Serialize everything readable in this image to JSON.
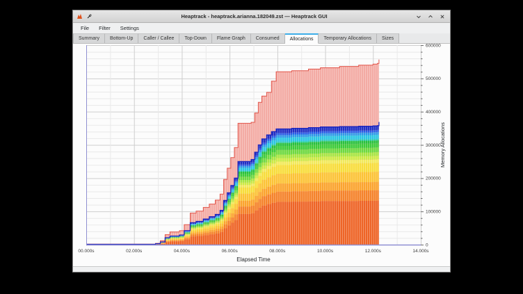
{
  "window": {
    "title": "Heaptrack - heaptrack.arianna.182049.zst — Heaptrack GUI",
    "icons": [
      "heaptrack-app-icon",
      "pin-icon"
    ],
    "controls": [
      "minimize",
      "maximize",
      "close"
    ]
  },
  "menubar": {
    "items": [
      "File",
      "Filter",
      "Settings"
    ]
  },
  "tabs": {
    "items": [
      "Summary",
      "Bottom-Up",
      "Caller / Callee",
      "Top-Down",
      "Flame Graph",
      "Consumed",
      "Allocations",
      "Temporary Allocations",
      "Sizes"
    ],
    "active": "Allocations"
  },
  "chart_data": {
    "type": "area",
    "title": "",
    "xlabel": "Elapsed Time",
    "ylabel": "Memory Allocations",
    "xlim": [
      0,
      14
    ],
    "ylim": [
      0,
      600000
    ],
    "x_tick_values": [
      0,
      2,
      4,
      6,
      8,
      10,
      12,
      14
    ],
    "x_tick_labels": [
      "00.000s",
      "02.000s",
      "04.000s",
      "06.000s",
      "08.000s",
      "10.000s",
      "12.000s",
      "14.000s"
    ],
    "y_tick_values": [
      0,
      100000,
      200000,
      300000,
      400000,
      500000,
      600000
    ],
    "y_tick_labels": [
      "0",
      "100000",
      "200000",
      "300000",
      "400000",
      "500000",
      "600000"
    ],
    "x_minor_step": 1,
    "y_minor_step": 20000,
    "grid": true,
    "legend": "none",
    "colors": {
      "axis_line": "#8f8fd2",
      "grid_major": "#cecece",
      "grid_minor": "#e9e9e9",
      "tick_text": "#3a3a3a",
      "total_fill": "#f3aba4",
      "total_line": "#e25449",
      "stack_top_line": "#1b24bd"
    },
    "points_format": [
      "time_s",
      "total_allocations",
      "stacked_top_allocations"
    ],
    "points": [
      [
        0.0,
        1500,
        1000
      ],
      [
        2.9,
        4000,
        3000
      ],
      [
        3.1,
        12000,
        8000
      ],
      [
        3.3,
        30000,
        21000
      ],
      [
        3.5,
        38000,
        26000
      ],
      [
        3.9,
        42000,
        29000
      ],
      [
        4.1,
        60000,
        42000
      ],
      [
        4.35,
        95000,
        66000
      ],
      [
        4.6,
        101000,
        70000
      ],
      [
        4.9,
        112000,
        77000
      ],
      [
        5.15,
        122000,
        84000
      ],
      [
        5.4,
        134000,
        91000
      ],
      [
        5.6,
        152000,
        103000
      ],
      [
        5.75,
        196000,
        133000
      ],
      [
        5.9,
        230000,
        156000
      ],
      [
        6.05,
        262000,
        178000
      ],
      [
        6.2,
        292000,
        200000
      ],
      [
        6.35,
        365000,
        250000
      ],
      [
        6.9,
        368000,
        256000
      ],
      [
        7.05,
        396000,
        278000
      ],
      [
        7.2,
        428000,
        300000
      ],
      [
        7.35,
        447000,
        318000
      ],
      [
        7.55,
        458000,
        330000
      ],
      [
        7.75,
        492000,
        340000
      ],
      [
        7.95,
        520000,
        348000
      ],
      [
        8.6,
        523000,
        350000
      ],
      [
        9.3,
        528000,
        352000
      ],
      [
        9.8,
        532000,
        354000
      ],
      [
        10.6,
        536000,
        355000
      ],
      [
        11.4,
        540000,
        356000
      ],
      [
        12.0,
        543000,
        357000
      ],
      [
        12.18,
        545000,
        358000
      ],
      [
        12.25,
        557000,
        369000
      ]
    ],
    "bands_note": "stacked rainbow bands under the total curve, bottom to top, as fraction of stacked_top_allocations",
    "bands": [
      {
        "color": "#ee6426",
        "fraction": 0.37
      },
      {
        "color": "#f5832b",
        "fraction": 0.088
      },
      {
        "color": "#fba42e",
        "fraction": 0.07
      },
      {
        "color": "#fcc336",
        "fraction": 0.085
      },
      {
        "color": "#f8dd3c",
        "fraction": 0.075
      },
      {
        "color": "#f2ea5c",
        "fraction": 0.03
      },
      {
        "color": "#cdea46",
        "fraction": 0.03
      },
      {
        "color": "#a8e542",
        "fraction": 0.03
      },
      {
        "color": "#6fd940",
        "fraction": 0.04
      },
      {
        "color": "#3ecb3a",
        "fraction": 0.035
      },
      {
        "color": "#2ac03e",
        "fraction": 0.025
      },
      {
        "color": "#29cfae",
        "fraction": 0.012
      },
      {
        "color": "#2bc6e2",
        "fraction": 0.035
      },
      {
        "color": "#2f99e8",
        "fraction": 0.022
      },
      {
        "color": "#2a5ce6",
        "fraction": 0.018
      },
      {
        "color": "#232fc4",
        "fraction": 0.035
      }
    ]
  }
}
